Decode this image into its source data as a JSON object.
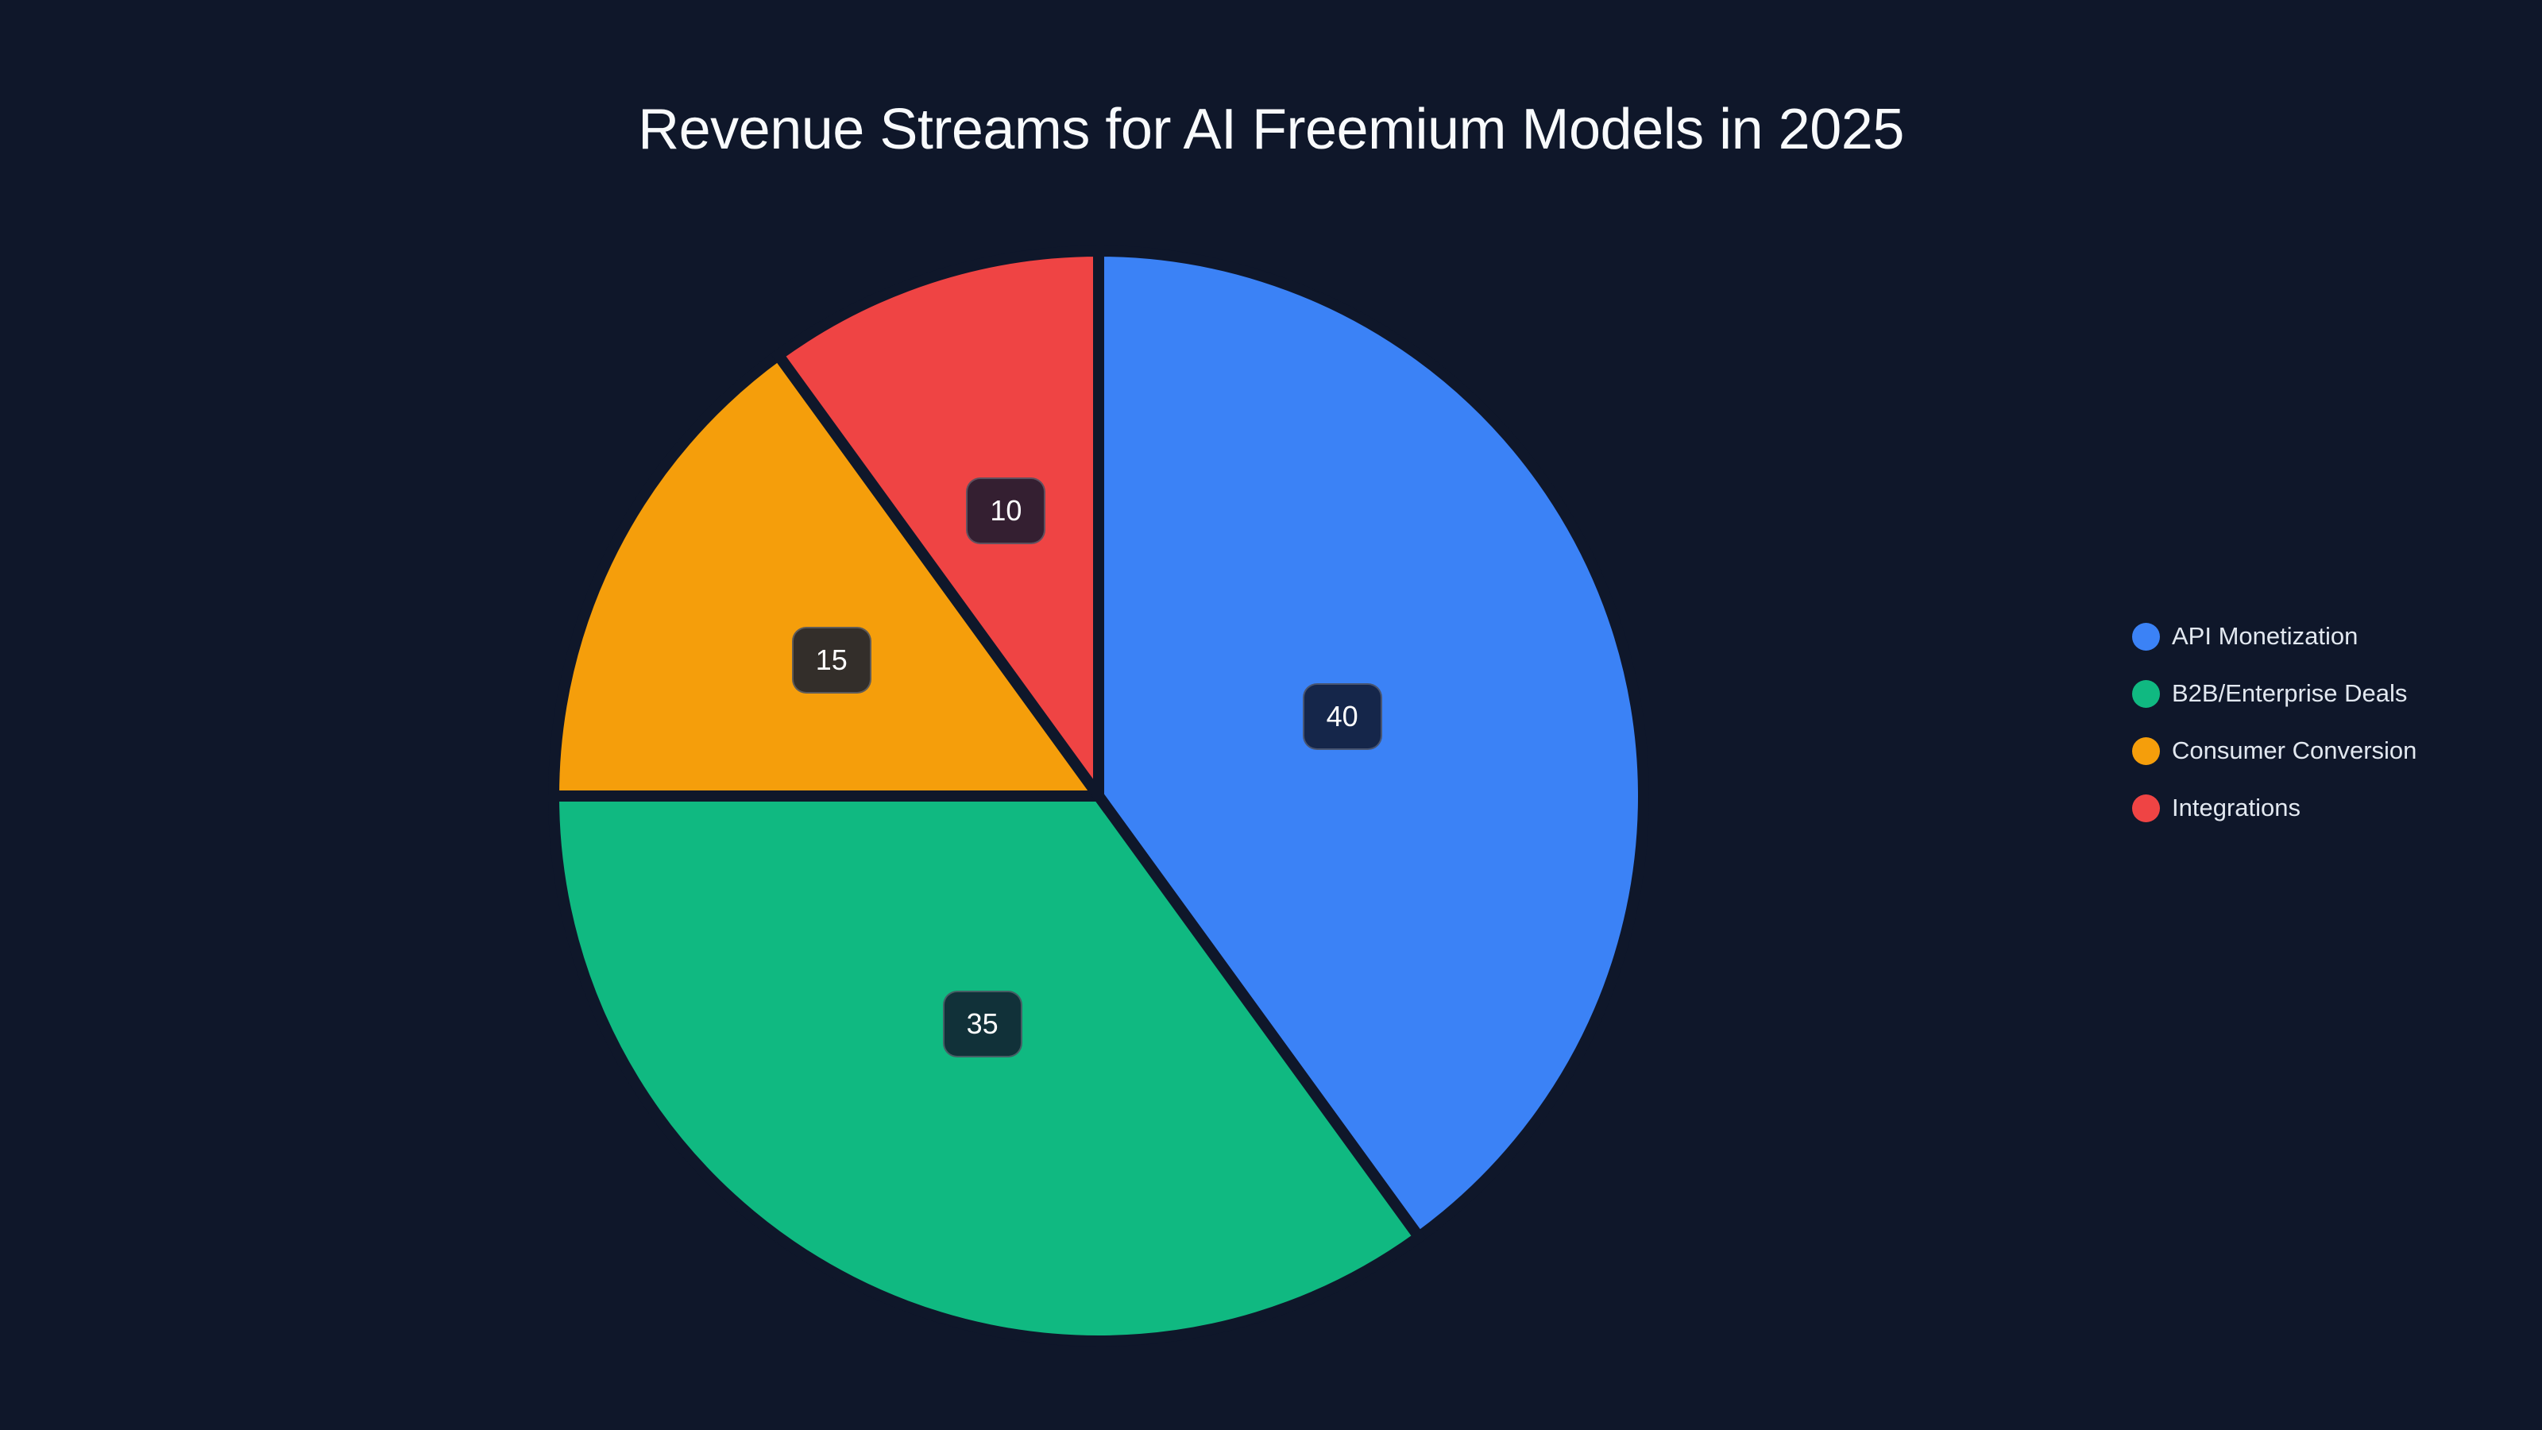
{
  "title": "Revenue Streams for AI Freemium Models in 2025",
  "background": "#0f172a",
  "chart_data": {
    "type": "pie",
    "title": "Revenue Streams for AI Freemium Models in 2025",
    "categories": [
      "API Monetization",
      "B2B/Enterprise Deals",
      "Consumer Conversion",
      "Integrations"
    ],
    "values": [
      40,
      35,
      15,
      10
    ],
    "colors": [
      "#3b82f6",
      "#10b981",
      "#f59e0b",
      "#ef4444"
    ],
    "label_box_colors": [
      "#15264a",
      "#113139",
      "#332e2a",
      "#341f31"
    ],
    "start_angle": "12 o'clock",
    "direction": "clockwise",
    "data_labels": [
      "40",
      "35",
      "15",
      "10"
    ],
    "legend_position": "right"
  },
  "legend": {
    "items": [
      {
        "label": "API Monetization",
        "color": "#3b82f6",
        "icon": "circle-swatch"
      },
      {
        "label": "B2B/Enterprise Deals",
        "color": "#10b981",
        "icon": "circle-swatch"
      },
      {
        "label": "Consumer Conversion",
        "color": "#f59e0b",
        "icon": "circle-swatch"
      },
      {
        "label": "Integrations",
        "color": "#ef4444",
        "icon": "circle-swatch"
      }
    ]
  }
}
